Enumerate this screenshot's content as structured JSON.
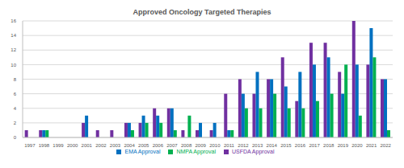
{
  "chart_data": {
    "type": "bar",
    "title": "Approved Oncology Targeted Therapies",
    "categories": [
      "1997",
      "1998",
      "1999",
      "2000",
      "2001",
      "2002",
      "2003",
      "2004",
      "2005",
      "2006",
      "2007",
      "2008",
      "2009",
      "2010",
      "2011",
      "2012",
      "2013",
      "2014",
      "2015",
      "2016",
      "2017",
      "2018",
      "2019",
      "2020",
      "2021",
      "2022"
    ],
    "series": [
      {
        "name": "USFDA Approval",
        "color": "#7030a0",
        "values": [
          1,
          1,
          0,
          0,
          2,
          1,
          1,
          2,
          2,
          4,
          4,
          1,
          1,
          1,
          6,
          8,
          6,
          8,
          11,
          5,
          13,
          13,
          9,
          16,
          10,
          8
        ]
      },
      {
        "name": "EMA Approval",
        "color": "#0070c0",
        "values": [
          0,
          1,
          0,
          0,
          3,
          0,
          0,
          2,
          3,
          3,
          4,
          0,
          2,
          2,
          1,
          6,
          9,
          8,
          7,
          9,
          10,
          11,
          6,
          10,
          15,
          8
        ]
      },
      {
        "name": "NMPA Approval",
        "color": "#00b050",
        "values": [
          0,
          1,
          0,
          0,
          0,
          0,
          0,
          1,
          2,
          2,
          1,
          3,
          0,
          0,
          1,
          4,
          4,
          6,
          4,
          4,
          5,
          6,
          10,
          3,
          11,
          1
        ]
      }
    ],
    "ylim": [
      0,
      16
    ],
    "yticks": [
      0,
      2,
      4,
      6,
      8,
      10,
      12,
      14,
      16
    ],
    "grid": true,
    "legend": "bottom"
  }
}
